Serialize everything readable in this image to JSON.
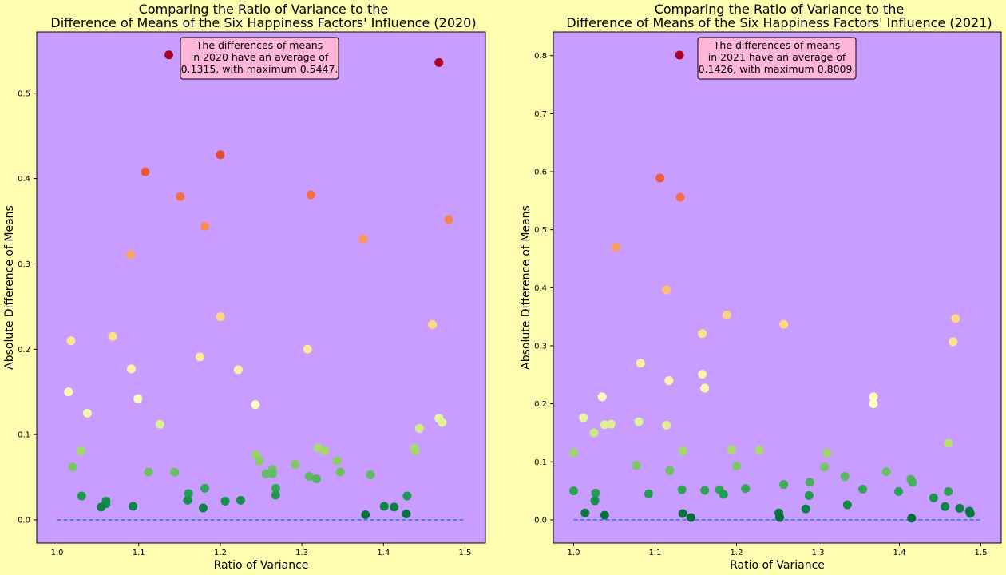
{
  "chart_data": [
    {
      "type": "scatter",
      "title": [
        "Comparing the Ratio of Variance to the",
        "Difference of Means of the Six Happiness Factors' Influence (2020)"
      ],
      "xlabel": "Ratio of Variance",
      "ylabel": "Absolute Difference of Means",
      "xlim": [
        0.975,
        1.525
      ],
      "ylim": [
        -0.0272,
        0.5719
      ],
      "xticks": [
        1.0,
        1.1,
        1.2,
        1.3,
        1.4,
        1.5
      ],
      "xtick_labels": [
        "1.0",
        "1.1",
        "1.2",
        "1.3",
        "1.4",
        "1.5"
      ],
      "yticks": [
        0.0,
        0.1,
        0.2,
        0.3,
        0.4,
        0.5
      ],
      "ytick_labels": [
        "0.0",
        "0.1",
        "0.2",
        "0.3",
        "0.4",
        "0.5"
      ],
      "reference_line": {
        "y": 0,
        "x_range": [
          1.0,
          1.5
        ],
        "style": "dashed",
        "color": "#1f6fe5"
      },
      "colormap": "RdYlGn reversed, by difference of means",
      "annotation": [
        "The differences of means",
        "in 2020 have an average of",
        "0.1315, with maximum 0.5447."
      ],
      "background": "#c99cff",
      "points": [
        [
          1.137,
          0.545
        ],
        [
          1.468,
          0.536
        ],
        [
          1.2,
          0.428
        ],
        [
          1.108,
          0.408
        ],
        [
          1.151,
          0.379
        ],
        [
          1.311,
          0.381
        ],
        [
          1.181,
          0.344
        ],
        [
          1.48,
          0.352
        ],
        [
          1.375,
          0.329
        ],
        [
          1.09,
          0.311
        ],
        [
          1.2,
          0.238
        ],
        [
          1.46,
          0.229
        ],
        [
          1.068,
          0.215
        ],
        [
          1.017,
          0.21
        ],
        [
          1.175,
          0.191
        ],
        [
          1.307,
          0.2
        ],
        [
          1.091,
          0.177
        ],
        [
          1.222,
          0.176
        ],
        [
          1.014,
          0.15
        ],
        [
          1.099,
          0.142
        ],
        [
          1.243,
          0.135
        ],
        [
          1.037,
          0.125
        ],
        [
          1.126,
          0.112
        ],
        [
          1.468,
          0.119
        ],
        [
          1.472,
          0.114
        ],
        [
          1.444,
          0.107
        ],
        [
          1.029,
          0.081
        ],
        [
          1.019,
          0.062
        ],
        [
          1.32,
          0.084
        ],
        [
          1.328,
          0.081
        ],
        [
          1.438,
          0.084
        ],
        [
          1.439,
          0.081
        ],
        [
          1.244,
          0.076
        ],
        [
          1.248,
          0.069
        ],
        [
          1.343,
          0.069
        ],
        [
          1.292,
          0.065
        ],
        [
          1.264,
          0.059
        ],
        [
          1.256,
          0.054
        ],
        [
          1.264,
          0.054
        ],
        [
          1.112,
          0.056
        ],
        [
          1.144,
          0.056
        ],
        [
          1.347,
          0.056
        ],
        [
          1.384,
          0.053
        ],
        [
          1.309,
          0.051
        ],
        [
          1.318,
          0.048
        ],
        [
          1.03,
          0.028
        ],
        [
          1.06,
          0.022
        ],
        [
          1.06,
          0.019
        ],
        [
          1.054,
          0.015
        ],
        [
          1.093,
          0.016
        ],
        [
          1.161,
          0.031
        ],
        [
          1.181,
          0.037
        ],
        [
          1.268,
          0.037
        ],
        [
          1.268,
          0.029
        ],
        [
          1.16,
          0.023
        ],
        [
          1.206,
          0.022
        ],
        [
          1.225,
          0.023
        ],
        [
          1.179,
          0.014
        ],
        [
          1.429,
          0.028
        ],
        [
          1.401,
          0.016
        ],
        [
          1.413,
          0.015
        ],
        [
          1.428,
          0.007
        ],
        [
          1.378,
          0.006
        ]
      ]
    },
    {
      "type": "scatter",
      "title": [
        "Comparing the Ratio of Variance to the",
        "Difference of Means of the Six Happiness Factors' Influence (2021)"
      ],
      "xlabel": "Ratio of Variance",
      "ylabel": "Absolute Difference of Means",
      "xlim": [
        0.975,
        1.525
      ],
      "ylim": [
        -0.04,
        0.8409
      ],
      "xticks": [
        1.0,
        1.1,
        1.2,
        1.3,
        1.4,
        1.5
      ],
      "xtick_labels": [
        "1.0",
        "1.1",
        "1.2",
        "1.3",
        "1.4",
        "1.5"
      ],
      "yticks": [
        0.0,
        0.1,
        0.2,
        0.3,
        0.4,
        0.5,
        0.6,
        0.7,
        0.8
      ],
      "ytick_labels": [
        "0.0",
        "0.1",
        "0.2",
        "0.3",
        "0.4",
        "0.5",
        "0.6",
        "0.7",
        "0.8"
      ],
      "reference_line": {
        "y": 0,
        "x_range": [
          1.0,
          1.5
        ],
        "style": "dashed",
        "color": "#1f6fe5"
      },
      "colormap": "RdYlGn reversed, by difference of means",
      "annotation": [
        "The differences of means",
        "in 2021 have an average of",
        "0.1426, with maximum 0.8009."
      ],
      "background": "#c99cff",
      "points": [
        [
          1.13,
          0.801
        ],
        [
          1.106,
          0.589
        ],
        [
          1.131,
          0.556
        ],
        [
          1.052,
          0.47
        ],
        [
          1.114,
          0.396
        ],
        [
          1.188,
          0.353
        ],
        [
          1.258,
          0.337
        ],
        [
          1.158,
          0.321
        ],
        [
          1.469,
          0.347
        ],
        [
          1.466,
          0.307
        ],
        [
          1.082,
          0.27
        ],
        [
          1.158,
          0.251
        ],
        [
          1.117,
          0.24
        ],
        [
          1.161,
          0.227
        ],
        [
          1.035,
          0.212
        ],
        [
          1.368,
          0.212
        ],
        [
          1.368,
          0.2
        ],
        [
          1.012,
          0.176
        ],
        [
          1.08,
          0.169
        ],
        [
          1.038,
          0.164
        ],
        [
          1.046,
          0.165
        ],
        [
          1.114,
          0.163
        ],
        [
          1.025,
          0.15
        ],
        [
          1.194,
          0.121
        ],
        [
          1.228,
          0.12
        ],
        [
          1.134,
          0.119
        ],
        [
          1.0,
          0.116
        ],
        [
          1.311,
          0.115
        ],
        [
          1.46,
          0.132
        ],
        [
          1.077,
          0.094
        ],
        [
          1.2,
          0.093
        ],
        [
          1.308,
          0.091
        ],
        [
          1.118,
          0.085
        ],
        [
          1.384,
          0.083
        ],
        [
          1.333,
          0.075
        ],
        [
          1.29,
          0.065
        ],
        [
          1.414,
          0.07
        ],
        [
          1.416,
          0.065
        ],
        [
          1.258,
          0.061
        ],
        [
          1.211,
          0.054
        ],
        [
          1.133,
          0.052
        ],
        [
          1.161,
          0.051
        ],
        [
          1.179,
          0.052
        ],
        [
          1.184,
          0.044
        ],
        [
          1.355,
          0.053
        ],
        [
          1.399,
          0.049
        ],
        [
          1.46,
          0.049
        ],
        [
          1.0,
          0.05
        ],
        [
          1.027,
          0.046
        ],
        [
          1.092,
          0.045
        ],
        [
          1.289,
          0.042
        ],
        [
          1.442,
          0.038
        ],
        [
          1.026,
          0.033
        ],
        [
          1.336,
          0.026
        ],
        [
          1.456,
          0.023
        ],
        [
          1.474,
          0.02
        ],
        [
          1.486,
          0.015
        ],
        [
          1.487,
          0.011
        ],
        [
          1.285,
          0.019
        ],
        [
          1.014,
          0.012
        ],
        [
          1.038,
          0.008
        ],
        [
          1.134,
          0.011
        ],
        [
          1.144,
          0.004
        ],
        [
          1.252,
          0.012
        ],
        [
          1.253,
          0.004
        ],
        [
          1.415,
          0.003
        ]
      ]
    }
  ]
}
